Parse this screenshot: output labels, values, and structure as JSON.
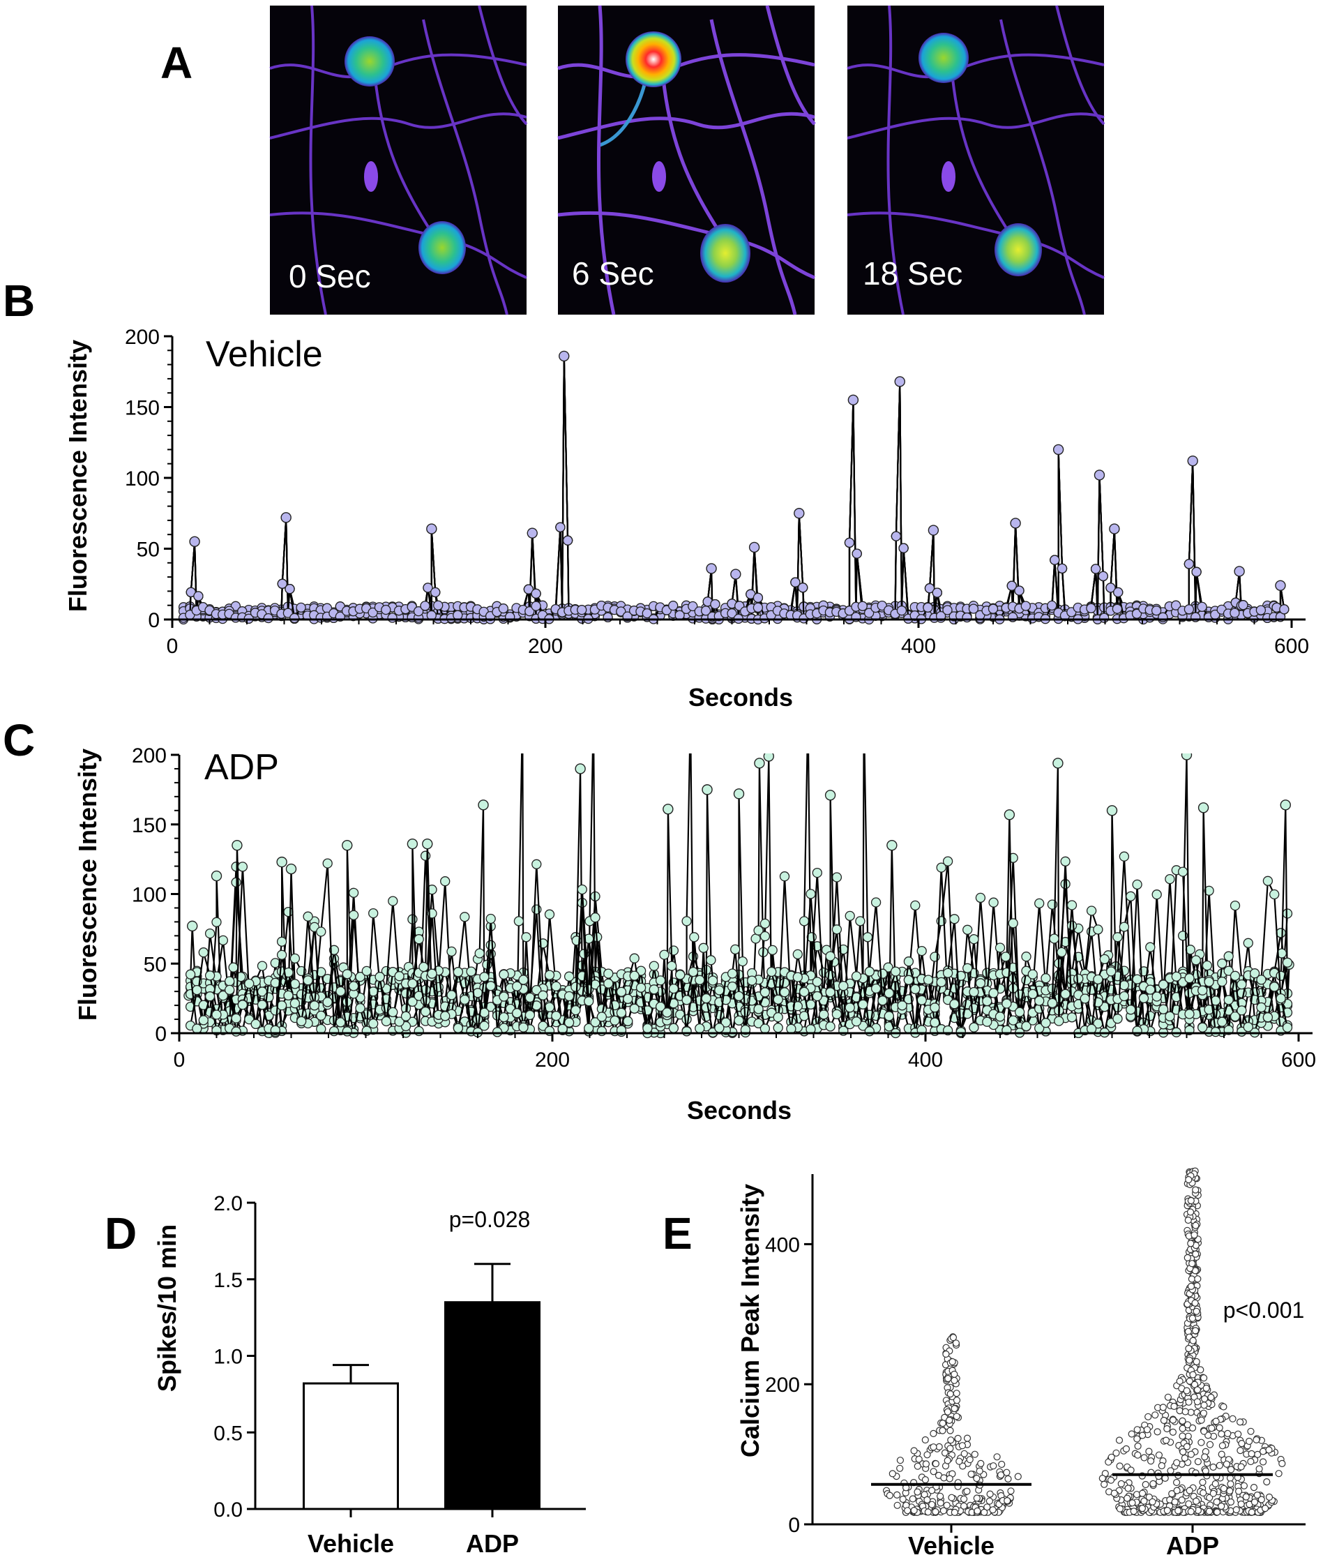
{
  "panels": {
    "A": {
      "letter": "A",
      "frames": [
        {
          "label": "0 Sec",
          "state": "baseline"
        },
        {
          "label": "6 Sec",
          "state": "peak"
        },
        {
          "label": "18 Sec",
          "state": "recovery"
        }
      ]
    },
    "B": {
      "letter": "B"
    },
    "C": {
      "letter": "C"
    },
    "D": {
      "letter": "D"
    },
    "E": {
      "letter": "E"
    }
  },
  "colors": {
    "vehicle_marker": "#b9b6ee",
    "adp_marker": "#c8f2df",
    "line": "#000000",
    "bar_vehicle": "#ffffff",
    "bar_adp": "#000000"
  },
  "chart_data": [
    {
      "id": "B",
      "type": "line",
      "series_label": "Vehicle",
      "xlabel": "Seconds",
      "ylabel": "Fluorescence Intensity",
      "xlim": [
        0,
        600
      ],
      "ylim": [
        0,
        200
      ],
      "xticks": [
        "0",
        "200",
        "400",
        "600"
      ],
      "yticks": [
        "0",
        "50",
        "100",
        "150",
        "200"
      ],
      "peaks": [
        {
          "x": 12,
          "y": 55
        },
        {
          "x": 61,
          "y": 72
        },
        {
          "x": 139,
          "y": 64
        },
        {
          "x": 193,
          "y": 61
        },
        {
          "x": 210,
          "y": 186
        },
        {
          "x": 289,
          "y": 36
        },
        {
          "x": 302,
          "y": 32
        },
        {
          "x": 312,
          "y": 51
        },
        {
          "x": 336,
          "y": 75
        },
        {
          "x": 365,
          "y": 155
        },
        {
          "x": 390,
          "y": 168
        },
        {
          "x": 408,
          "y": 63
        },
        {
          "x": 452,
          "y": 68
        },
        {
          "x": 475,
          "y": 120
        },
        {
          "x": 497,
          "y": 102
        },
        {
          "x": 505,
          "y": 64
        },
        {
          "x": 547,
          "y": 112
        },
        {
          "x": 572,
          "y": 34
        },
        {
          "x": 594,
          "y": 24
        }
      ]
    },
    {
      "id": "C",
      "type": "line",
      "series_label": "ADP",
      "xlabel": "Seconds",
      "ylabel": "Fluorescence Intensity",
      "xlim": [
        0,
        600
      ],
      "ylim": [
        0,
        200
      ],
      "xticks": [
        "0",
        "200",
        "400",
        "600"
      ],
      "yticks": [
        "0",
        "50",
        "100",
        "150",
        "200"
      ],
      "peaks": [
        {
          "x": 7,
          "y": 77
        },
        {
          "x": 20,
          "y": 113
        },
        {
          "x": 31,
          "y": 135
        },
        {
          "x": 55,
          "y": 123
        },
        {
          "x": 60,
          "y": 118
        },
        {
          "x": 90,
          "y": 135
        },
        {
          "x": 125,
          "y": 136
        },
        {
          "x": 133,
          "y": 136
        },
        {
          "x": 163,
          "y": 164
        },
        {
          "x": 184,
          "y": 230
        },
        {
          "x": 215,
          "y": 190
        },
        {
          "x": 222,
          "y": 230
        },
        {
          "x": 262,
          "y": 161
        },
        {
          "x": 274,
          "y": 230
        },
        {
          "x": 283,
          "y": 175
        },
        {
          "x": 300,
          "y": 172
        },
        {
          "x": 311,
          "y": 194
        },
        {
          "x": 316,
          "y": 199
        },
        {
          "x": 337,
          "y": 230
        },
        {
          "x": 349,
          "y": 171
        },
        {
          "x": 367,
          "y": 230
        },
        {
          "x": 382,
          "y": 135
        },
        {
          "x": 445,
          "y": 157
        },
        {
          "x": 471,
          "y": 194
        },
        {
          "x": 500,
          "y": 160
        },
        {
          "x": 540,
          "y": 200
        },
        {
          "x": 549,
          "y": 162
        },
        {
          "x": 593,
          "y": 164
        }
      ]
    },
    {
      "id": "D",
      "type": "bar",
      "categories": [
        "Vehicle",
        "ADP"
      ],
      "values": [
        0.82,
        1.35
      ],
      "errors": [
        0.12,
        0.25
      ],
      "ylabel": "Spikes/10 min",
      "ylim": [
        0,
        2.0
      ],
      "yticks": [
        "0.0",
        "0.5",
        "1.0",
        "1.5",
        "2.0"
      ],
      "annotation": "p=0.028"
    },
    {
      "id": "E",
      "type": "scatter",
      "categories": [
        "Vehicle",
        "ADP"
      ],
      "medians": [
        57,
        71
      ],
      "ranges": [
        [
          5,
          256
        ],
        [
          5,
          498
        ]
      ],
      "ylabel": "Calcium Peak Intensity",
      "ylim": [
        0,
        500
      ],
      "yticks": [
        "0",
        "200",
        "400"
      ],
      "annotation": "p<0.001"
    }
  ]
}
